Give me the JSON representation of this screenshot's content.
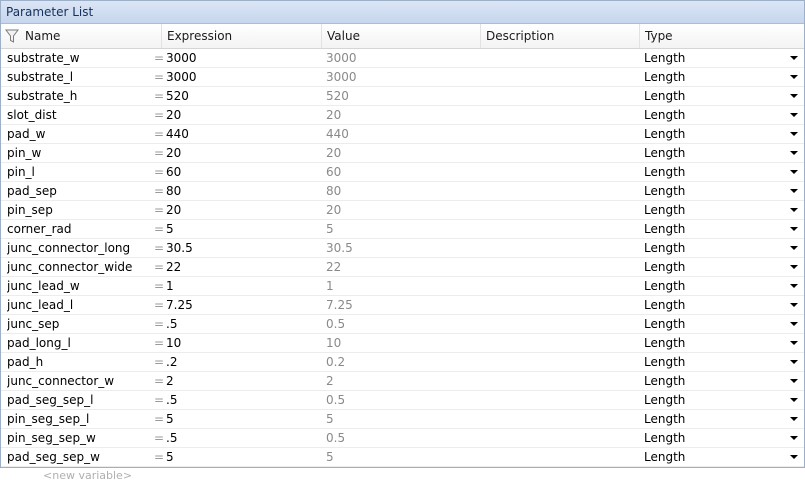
{
  "panel": {
    "title": "Parameter List"
  },
  "columns": {
    "name": "Name",
    "expression": "Expression",
    "value": "Value",
    "description": "Description",
    "type": "Type"
  },
  "rows": [
    {
      "name": "substrate_w",
      "eq": "=",
      "expression": "3000",
      "value": "3000",
      "description": "",
      "type": "Length"
    },
    {
      "name": "substrate_l",
      "eq": "=",
      "expression": "3000",
      "value": "3000",
      "description": "",
      "type": "Length"
    },
    {
      "name": "substrate_h",
      "eq": "=",
      "expression": "520",
      "value": "520",
      "description": "",
      "type": "Length"
    },
    {
      "name": "slot_dist",
      "eq": "=",
      "expression": "20",
      "value": "20",
      "description": "",
      "type": "Length"
    },
    {
      "name": "pad_w",
      "eq": "=",
      "expression": "440",
      "value": "440",
      "description": "",
      "type": "Length"
    },
    {
      "name": "pin_w",
      "eq": "=",
      "expression": "20",
      "value": "20",
      "description": "",
      "type": "Length"
    },
    {
      "name": "pin_l",
      "eq": "=",
      "expression": "60",
      "value": "60",
      "description": "",
      "type": "Length"
    },
    {
      "name": "pad_sep",
      "eq": "=",
      "expression": "80",
      "value": "80",
      "description": "",
      "type": "Length"
    },
    {
      "name": "pin_sep",
      "eq": "=",
      "expression": "20",
      "value": "20",
      "description": "",
      "type": "Length"
    },
    {
      "name": "corner_rad",
      "eq": "=",
      "expression": "5",
      "value": "5",
      "description": "",
      "type": "Length"
    },
    {
      "name": "junc_connector_long",
      "eq": "=",
      "expression": "30.5",
      "value": "30.5",
      "description": "",
      "type": "Length"
    },
    {
      "name": "junc_connector_wide",
      "eq": "=",
      "expression": "22",
      "value": "22",
      "description": "",
      "type": "Length"
    },
    {
      "name": "junc_lead_w",
      "eq": "=",
      "expression": "1",
      "value": "1",
      "description": "",
      "type": "Length"
    },
    {
      "name": "junc_lead_l",
      "eq": "=",
      "expression": "7.25",
      "value": "7.25",
      "description": "",
      "type": "Length"
    },
    {
      "name": "junc_sep",
      "eq": "=",
      "expression": ".5",
      "value": "0.5",
      "description": "",
      "type": "Length"
    },
    {
      "name": "pad_long_l",
      "eq": "=",
      "expression": "10",
      "value": "10",
      "description": "",
      "type": "Length"
    },
    {
      "name": "pad_h",
      "eq": "=",
      "expression": ".2",
      "value": "0.2",
      "description": "",
      "type": "Length"
    },
    {
      "name": "junc_connector_w",
      "eq": "=",
      "expression": "2",
      "value": "2",
      "description": "",
      "type": "Length"
    },
    {
      "name": "pad_seg_sep_l",
      "eq": "=",
      "expression": ".5",
      "value": "0.5",
      "description": "",
      "type": "Length"
    },
    {
      "name": "pin_seg_sep_l",
      "eq": "=",
      "expression": "5",
      "value": "5",
      "description": "",
      "type": "Length"
    },
    {
      "name": "pin_seg_sep_w",
      "eq": "=",
      "expression": ".5",
      "value": "0.5",
      "description": "",
      "type": "Length"
    },
    {
      "name": "pad_seg_sep_w",
      "eq": "=",
      "expression": "5",
      "value": "5",
      "description": "",
      "type": "Length"
    }
  ],
  "new_variable_placeholder": "<new variable>",
  "icons": {
    "filter": "filter-icon",
    "dropdown": "chevron-down-icon"
  }
}
